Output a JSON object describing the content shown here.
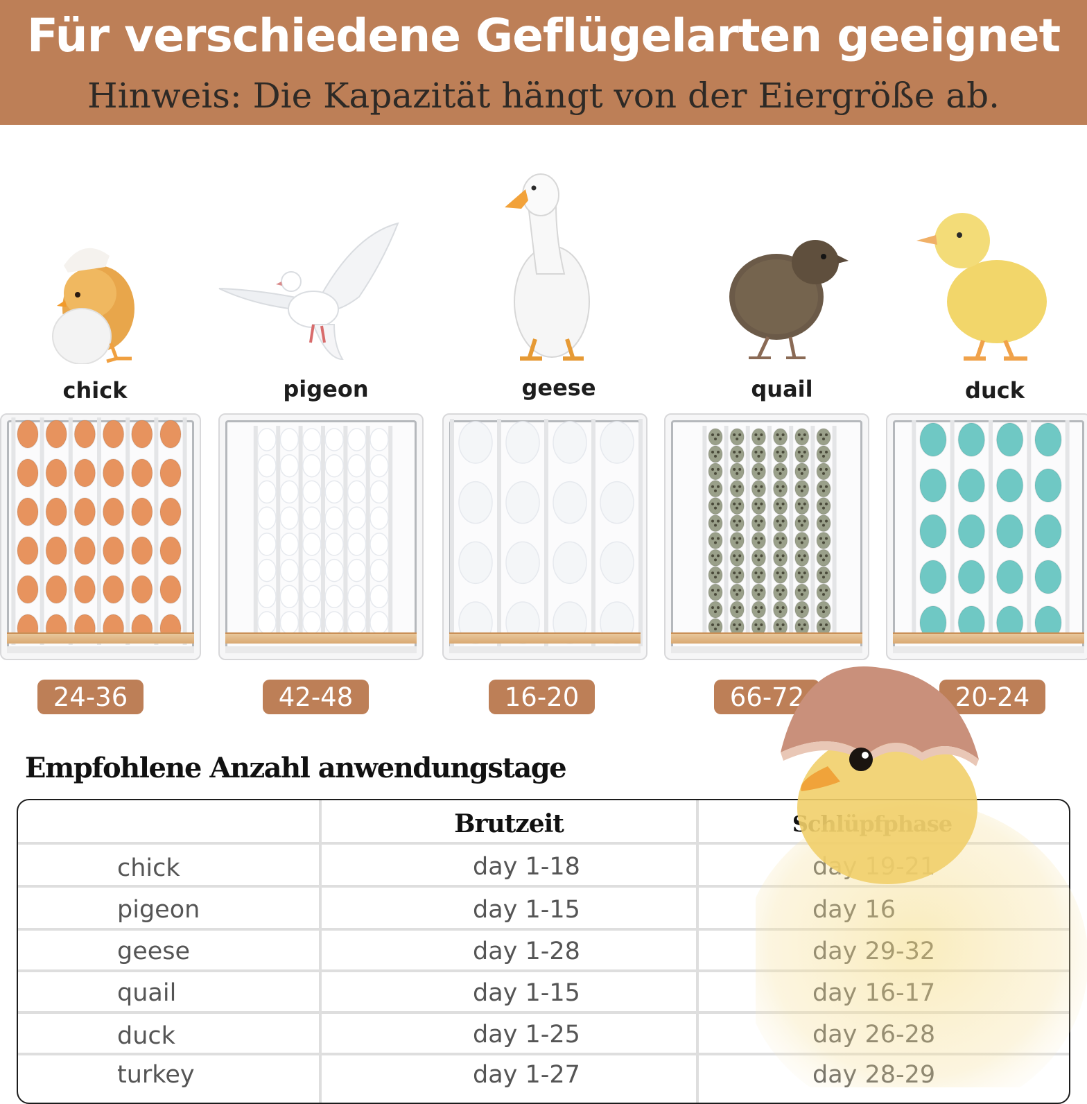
{
  "header": {
    "title": "Für verschiedene Geflügelarten geeignet",
    "subtitle": "Hinweis: Die Kapazität hängt von der Eiergröße ab."
  },
  "birds": [
    {
      "name": "chick",
      "capacity": "24-36",
      "egg_color": "#e7935e",
      "image": "chick-photo"
    },
    {
      "name": "pigeon",
      "capacity": "42-48",
      "egg_color": "#ffffff",
      "image": "dove-photo"
    },
    {
      "name": "geese",
      "capacity": "16-20",
      "egg_color": "#f4f6f8",
      "image": "goose-photo"
    },
    {
      "name": "quail",
      "capacity": "66-72",
      "egg_color": "#9aa08a",
      "image": "quail-photo"
    },
    {
      "name": "duck",
      "capacity": "20-24",
      "egg_color": "#6fc8c4",
      "image": "duckling-photo"
    }
  ],
  "table": {
    "title": "Empfohlene Anzahl anwendungstage",
    "headers": [
      "",
      "Brutzeit",
      "Schlüpfphase"
    ],
    "rows": [
      [
        "chick",
        "day 1-18",
        "day 19-21"
      ],
      [
        "pigeon",
        "day 1-15",
        "day 16"
      ],
      [
        "geese",
        "day 1-28",
        "day 29-32"
      ],
      [
        "quail",
        "day 1-15",
        "day 16-17"
      ],
      [
        "duck",
        "day 1-25",
        "day 26-28"
      ],
      [
        "turkey",
        "day 1-27",
        "day 28-29"
      ]
    ]
  },
  "colors": {
    "brand": "#bd7f57",
    "text_dark": "#1d1d1d",
    "text_gray": "#555555"
  }
}
